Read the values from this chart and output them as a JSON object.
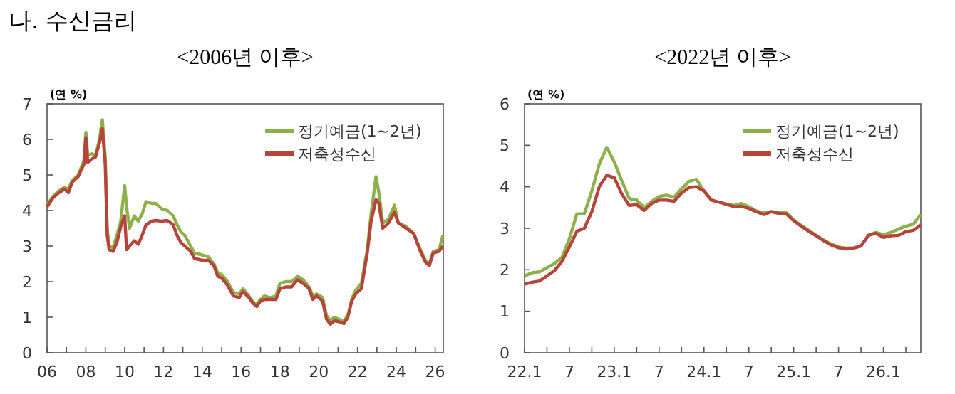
{
  "chart_data": [
    {
      "type": "line",
      "title": "<2006년 이후>",
      "ylabel": "(연 %)",
      "annotations": [
        "나. 수신금리"
      ],
      "x": [
        2006.0,
        2006.3,
        2006.6,
        2006.9,
        2007.1,
        2007.3,
        2007.6,
        2007.9,
        2008.0,
        2008.1,
        2008.3,
        2008.5,
        2008.7,
        2008.85,
        2009.0,
        2009.1,
        2009.2,
        2009.4,
        2009.6,
        2009.8,
        2010.0,
        2010.1,
        2010.25,
        2010.5,
        2010.7,
        2010.9,
        2011.1,
        2011.4,
        2011.6,
        2011.9,
        2012.2,
        2012.5,
        2012.7,
        2012.9,
        2013.1,
        2013.4,
        2013.6,
        2014.0,
        2014.3,
        2014.6,
        2014.8,
        2015.0,
        2015.3,
        2015.6,
        2015.9,
        2016.1,
        2016.4,
        2016.6,
        2016.8,
        2017.0,
        2017.2,
        2017.5,
        2017.8,
        2018.0,
        2018.3,
        2018.6,
        2018.9,
        2019.2,
        2019.5,
        2019.7,
        2019.9,
        2020.2,
        2020.4,
        2020.6,
        2020.8,
        2021.0,
        2021.3,
        2021.5,
        2021.7,
        2021.9,
        2022.2,
        2022.5,
        2022.7,
        2022.95,
        2023.1,
        2023.3,
        2023.6,
        2023.9,
        2024.1,
        2024.5,
        2024.9,
        2025.2,
        2025.5,
        2025.7,
        2025.9,
        2026.2,
        2026.4
      ],
      "series": [
        {
          "name": "정기예금(1~2년)",
          "color": "#8db04a",
          "values": [
            4.15,
            4.4,
            4.55,
            4.65,
            4.6,
            4.85,
            5.0,
            5.4,
            6.2,
            5.55,
            5.6,
            5.55,
            6.0,
            6.55,
            5.5,
            3.5,
            3.0,
            2.95,
            3.3,
            3.7,
            4.7,
            4.1,
            3.5,
            3.85,
            3.7,
            3.9,
            4.25,
            4.2,
            4.2,
            4.05,
            4.0,
            3.85,
            3.6,
            3.4,
            3.3,
            3.0,
            2.8,
            2.75,
            2.7,
            2.5,
            2.25,
            2.2,
            2.0,
            1.7,
            1.65,
            1.8,
            1.6,
            1.45,
            1.35,
            1.5,
            1.6,
            1.55,
            1.6,
            1.95,
            2.0,
            2.0,
            2.15,
            2.05,
            1.85,
            1.6,
            1.65,
            1.55,
            1.05,
            0.9,
            1.0,
            0.95,
            0.9,
            1.05,
            1.5,
            1.75,
            1.95,
            2.9,
            3.9,
            4.95,
            4.5,
            3.65,
            3.75,
            4.15,
            3.65,
            3.55,
            3.35,
            2.95,
            2.6,
            2.5,
            2.85,
            2.9,
            3.3
          ]
        },
        {
          "name": "저축성수신",
          "color": "#b5443b",
          "values": [
            4.1,
            4.35,
            4.5,
            4.6,
            4.5,
            4.8,
            4.95,
            5.3,
            6.05,
            5.35,
            5.45,
            5.5,
            5.9,
            6.3,
            5.3,
            3.3,
            2.9,
            2.85,
            3.1,
            3.55,
            3.85,
            2.9,
            3.0,
            3.15,
            3.05,
            3.3,
            3.6,
            3.7,
            3.72,
            3.7,
            3.72,
            3.6,
            3.3,
            3.1,
            3.0,
            2.85,
            2.65,
            2.6,
            2.6,
            2.45,
            2.15,
            2.1,
            1.9,
            1.6,
            1.55,
            1.72,
            1.55,
            1.4,
            1.3,
            1.45,
            1.5,
            1.5,
            1.5,
            1.8,
            1.85,
            1.85,
            2.05,
            1.95,
            1.8,
            1.5,
            1.6,
            1.45,
            0.95,
            0.8,
            0.9,
            0.88,
            0.82,
            1.0,
            1.45,
            1.65,
            1.8,
            2.8,
            3.7,
            4.3,
            4.2,
            3.5,
            3.65,
            3.95,
            3.65,
            3.5,
            3.35,
            2.9,
            2.55,
            2.45,
            2.8,
            2.85,
            3.0
          ]
        }
      ],
      "xlim": [
        2006,
        2026.42
      ],
      "xticks": [
        {
          "value": 2006,
          "label": "06"
        },
        {
          "value": 2007,
          "label": null
        },
        {
          "value": 2008,
          "label": "08"
        },
        {
          "value": 2009,
          "label": null
        },
        {
          "value": 2010,
          "label": "10"
        },
        {
          "value": 2011,
          "label": null
        },
        {
          "value": 2012,
          "label": "12"
        },
        {
          "value": 2013,
          "label": null
        },
        {
          "value": 2014,
          "label": "14"
        },
        {
          "value": 2015,
          "label": null
        },
        {
          "value": 2016,
          "label": "16"
        },
        {
          "value": 2017,
          "label": null
        },
        {
          "value": 2018,
          "label": "18"
        },
        {
          "value": 2019,
          "label": null
        },
        {
          "value": 2020,
          "label": "20"
        },
        {
          "value": 2021,
          "label": null
        },
        {
          "value": 2022,
          "label": "22"
        },
        {
          "value": 2023,
          "label": null
        },
        {
          "value": 2024,
          "label": "24"
        },
        {
          "value": 2025,
          "label": null
        },
        {
          "value": 2026,
          "label": "26"
        }
      ],
      "ylim": [
        0,
        7
      ],
      "yticks": [
        0,
        1,
        2,
        3,
        4,
        5,
        6,
        7
      ],
      "legend": "top right",
      "grid": false
    },
    {
      "type": "line",
      "title": "<2022년 이후>",
      "ylabel": "(연 %)",
      "x": [
        "2022-01",
        "2022-02",
        "2022-03",
        "2022-04",
        "2022-05",
        "2022-06",
        "2022-07",
        "2022-08",
        "2022-09",
        "2022-10",
        "2022-11",
        "2022-12",
        "2023-01",
        "2023-02",
        "2023-03",
        "2023-04",
        "2023-05",
        "2023-06",
        "2023-07",
        "2023-08",
        "2023-09",
        "2023-10",
        "2023-11",
        "2023-12",
        "2024-01",
        "2024-02",
        "2024-03",
        "2024-04",
        "2024-05",
        "2024-06",
        "2024-07",
        "2024-08",
        "2024-09",
        "2024-10",
        "2024-11",
        "2024-12",
        "2025-01",
        "2025-02",
        "2025-03",
        "2025-04",
        "2025-05",
        "2025-06",
        "2025-07",
        "2025-08",
        "2025-09",
        "2025-10",
        "2025-11",
        "2025-12",
        "2026-01",
        "2026-02",
        "2026-03",
        "2026-04",
        "2026-05",
        "2026-06"
      ],
      "series": [
        {
          "name": "정기예금(1~2년)",
          "color": "#8db04a",
          "values": [
            1.85,
            1.93,
            1.95,
            2.05,
            2.15,
            2.3,
            2.75,
            3.35,
            3.35,
            3.9,
            4.55,
            4.95,
            4.6,
            4.15,
            3.72,
            3.68,
            3.5,
            3.65,
            3.77,
            3.8,
            3.75,
            3.95,
            4.13,
            4.18,
            3.9,
            3.68,
            3.63,
            3.58,
            3.55,
            3.6,
            3.52,
            3.42,
            3.37,
            3.4,
            3.38,
            3.38,
            3.2,
            3.07,
            2.95,
            2.83,
            2.72,
            2.62,
            2.55,
            2.52,
            2.53,
            2.58,
            2.83,
            2.9,
            2.85,
            2.9,
            2.98,
            3.05,
            3.1,
            3.33
          ]
        },
        {
          "name": "저축성수신",
          "color": "#b5443b",
          "values": [
            1.65,
            1.7,
            1.73,
            1.85,
            1.98,
            2.2,
            2.55,
            2.93,
            3.0,
            3.4,
            4.0,
            4.28,
            4.22,
            3.83,
            3.55,
            3.57,
            3.43,
            3.6,
            3.68,
            3.68,
            3.65,
            3.85,
            3.98,
            4.0,
            3.9,
            3.68,
            3.63,
            3.58,
            3.52,
            3.53,
            3.48,
            3.4,
            3.33,
            3.4,
            3.36,
            3.35,
            3.18,
            3.05,
            2.93,
            2.82,
            2.7,
            2.6,
            2.53,
            2.5,
            2.52,
            2.57,
            2.83,
            2.88,
            2.78,
            2.82,
            2.83,
            2.92,
            2.95,
            3.08
          ]
        }
      ],
      "xlim": [
        "2022-01",
        "2026-06"
      ],
      "xticks": [
        {
          "value": "2022-01",
          "label": "22.1"
        },
        {
          "value": "2022-04",
          "label": null
        },
        {
          "value": "2022-07",
          "label": "7"
        },
        {
          "value": "2022-10",
          "label": null
        },
        {
          "value": "2023-01",
          "label": "23.1"
        },
        {
          "value": "2023-04",
          "label": null
        },
        {
          "value": "2023-07",
          "label": "7"
        },
        {
          "value": "2023-10",
          "label": null
        },
        {
          "value": "2024-01",
          "label": "24.1"
        },
        {
          "value": "2024-04",
          "label": null
        },
        {
          "value": "2024-07",
          "label": "7"
        },
        {
          "value": "2024-10",
          "label": null
        },
        {
          "value": "2025-01",
          "label": "25.1"
        },
        {
          "value": "2025-04",
          "label": null
        },
        {
          "value": "2025-07",
          "label": "7"
        },
        {
          "value": "2025-10",
          "label": null
        },
        {
          "value": "2026-01",
          "label": "26.1"
        },
        {
          "value": "2026-04",
          "label": null
        }
      ],
      "ylim": [
        0,
        6
      ],
      "yticks": [
        0,
        1,
        2,
        3,
        4,
        5,
        6
      ],
      "legend": "top right",
      "grid": false
    }
  ]
}
